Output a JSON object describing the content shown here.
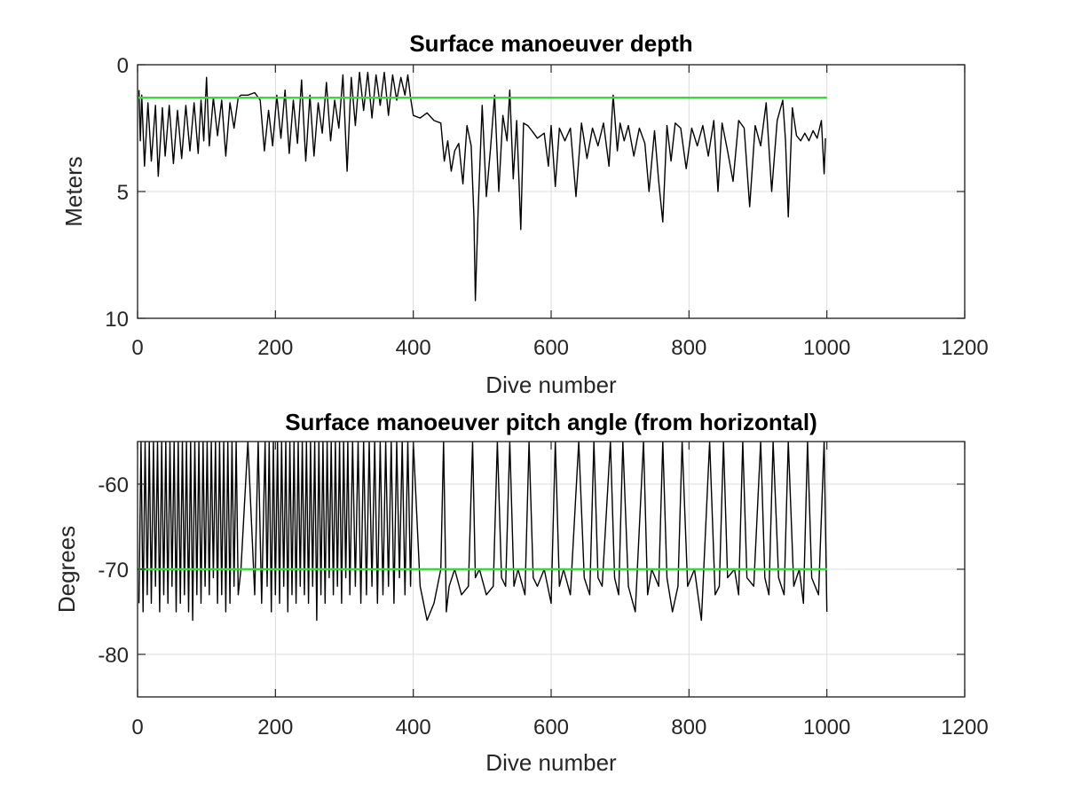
{
  "chart_data": [
    {
      "type": "line",
      "title": "Surface manoeuver depth",
      "xlabel": "Dive number",
      "ylabel": "Meters",
      "xlim": [
        0,
        1200
      ],
      "ylim": [
        0,
        10
      ],
      "y_reversed": true,
      "xticks": [
        0,
        200,
        400,
        600,
        800,
        1000,
        1200
      ],
      "yticks": [
        0,
        5,
        10
      ],
      "grid": true,
      "series": [
        {
          "color": "#000000",
          "x": [
            2,
            4,
            6,
            10,
            15,
            20,
            26,
            30,
            36,
            40,
            46,
            52,
            58,
            64,
            70,
            76,
            82,
            88,
            92,
            96,
            100,
            104,
            110,
            116,
            122,
            128,
            134,
            140,
            146,
            150,
            160,
            170,
            178,
            184,
            190,
            196,
            202,
            208,
            214,
            220,
            226,
            232,
            238,
            244,
            250,
            256,
            262,
            268,
            274,
            280,
            286,
            292,
            298,
            304,
            310,
            316,
            322,
            328,
            334,
            340,
            346,
            352,
            358,
            364,
            370,
            376,
            382,
            388,
            392,
            396,
            400,
            410,
            420,
            430,
            440,
            445,
            450,
            455,
            460,
            466,
            472,
            478,
            484,
            488,
            490,
            494,
            500,
            506,
            512,
            518,
            524,
            530,
            536,
            540,
            545,
            550,
            556,
            560,
            566,
            572,
            580,
            590,
            596,
            600,
            606,
            612,
            620,
            628,
            636,
            644,
            652,
            660,
            668,
            676,
            684,
            690,
            696,
            700,
            706,
            712,
            720,
            728,
            736,
            742,
            750,
            756,
            762,
            768,
            774,
            780,
            788,
            796,
            804,
            812,
            820,
            828,
            836,
            842,
            848,
            856,
            864,
            872,
            880,
            888,
            896,
            904,
            912,
            920,
            928,
            936,
            940,
            944,
            950,
            956,
            962,
            968,
            974,
            980,
            986,
            992,
            996,
            998
          ],
          "y": [
            1.0,
            3.0,
            1.2,
            4.0,
            1.5,
            3.8,
            1.6,
            4.4,
            1.7,
            3.6,
            1.6,
            3.9,
            1.8,
            3.7,
            1.6,
            3.4,
            1.5,
            3.5,
            1.4,
            3.0,
            0.5,
            3.2,
            1.3,
            2.8,
            1.4,
            3.6,
            1.5,
            2.5,
            1.3,
            1.2,
            1.2,
            1.1,
            1.4,
            3.4,
            1.8,
            3.2,
            1.2,
            2.9,
            1.0,
            3.5,
            1.4,
            3.1,
            0.6,
            3.8,
            1.2,
            3.6,
            1.5,
            2.7,
            0.7,
            3.0,
            1.4,
            2.5,
            0.4,
            4.2,
            0.5,
            2.4,
            0.3,
            1.8,
            0.3,
            2.1,
            0.4,
            1.6,
            0.3,
            2.0,
            0.4,
            1.4,
            0.5,
            1.2,
            0.4,
            1.3,
            2.0,
            2.1,
            1.9,
            2.2,
            2.3,
            3.8,
            3.0,
            4.2,
            3.4,
            3.1,
            4.7,
            2.4,
            3.2,
            6.0,
            9.3,
            5.8,
            1.6,
            5.2,
            3.3,
            1.2,
            5.0,
            2.0,
            3.0,
            1.0,
            4.5,
            2.2,
            6.5,
            2.3,
            2.4,
            2.6,
            2.9,
            2.7,
            4.0,
            2.4,
            4.8,
            2.5,
            3.0,
            2.5,
            5.2,
            2.3,
            3.7,
            2.5,
            3.2,
            2.3,
            4.0,
            1.2,
            3.4,
            2.3,
            3.0,
            2.4,
            3.6,
            2.5,
            3.1,
            5.0,
            2.6,
            4.6,
            6.2,
            2.4,
            3.8,
            2.3,
            2.5,
            4.1,
            2.5,
            3.2,
            2.4,
            3.6,
            2.2,
            5.0,
            2.3,
            3.4,
            4.6,
            2.2,
            2.5,
            5.6,
            2.4,
            3.2,
            1.5,
            5.0,
            2.2,
            1.4,
            3.0,
            6.0,
            1.7,
            2.8,
            3.0,
            2.7,
            3.0,
            2.6,
            2.9,
            2.2,
            4.3,
            2.9
          ]
        },
        {
          "color": "#33dd33",
          "x": [
            0,
            1000
          ],
          "y": [
            1.3,
            1.3
          ]
        }
      ]
    },
    {
      "type": "line",
      "title": "Surface manoeuver pitch angle (from horizontal)",
      "xlabel": "Dive number",
      "ylabel": "Degrees",
      "xlim": [
        0,
        1200
      ],
      "ylim": [
        -85,
        -55
      ],
      "xticks": [
        0,
        200,
        400,
        600,
        800,
        1000,
        1200
      ],
      "yticks": [
        -80,
        -70,
        -60
      ],
      "grid": true,
      "series": [
        {
          "color": "#000000",
          "x": [
            2,
            5,
            8,
            11,
            14,
            17,
            20,
            23,
            26,
            29,
            32,
            35,
            38,
            41,
            44,
            47,
            50,
            53,
            56,
            59,
            62,
            65,
            68,
            71,
            74,
            77,
            80,
            83,
            86,
            89,
            92,
            95,
            98,
            101,
            104,
            107,
            110,
            113,
            116,
            119,
            122,
            125,
            128,
            131,
            134,
            137,
            140,
            143,
            146,
            150,
            160,
            170,
            175,
            180,
            185,
            188,
            191,
            194,
            197,
            200,
            203,
            206,
            209,
            212,
            215,
            218,
            221,
            224,
            227,
            230,
            233,
            236,
            239,
            242,
            245,
            248,
            251,
            254,
            257,
            260,
            263,
            266,
            269,
            272,
            275,
            278,
            281,
            284,
            287,
            290,
            293,
            296,
            299,
            302,
            305,
            308,
            312,
            316,
            320,
            324,
            328,
            332,
            336,
            340,
            344,
            348,
            352,
            356,
            360,
            364,
            368,
            372,
            376,
            380,
            384,
            388,
            392,
            396,
            400,
            410,
            420,
            430,
            440,
            444,
            448,
            452,
            460,
            470,
            480,
            486,
            490,
            496,
            506,
            516,
            522,
            528,
            534,
            540,
            546,
            552,
            562,
            568,
            574,
            580,
            590,
            600,
            606,
            612,
            618,
            628,
            640,
            648,
            656,
            662,
            668,
            674,
            686,
            692,
            698,
            704,
            712,
            722,
            734,
            740,
            746,
            756,
            762,
            768,
            776,
            784,
            790,
            798,
            808,
            818,
            830,
            838,
            844,
            850,
            856,
            866,
            872,
            878,
            884,
            894,
            904,
            910,
            916,
            922,
            930,
            938,
            944,
            952,
            960,
            966,
            972,
            978,
            988,
            996,
            1000
          ],
          "y": [
            -74,
            -55,
            -75,
            -55,
            -73,
            -55,
            -74,
            -55,
            -72,
            -55,
            -75,
            -55,
            -73,
            -55,
            -74,
            -55,
            -72,
            -55,
            -75,
            -55,
            -74,
            -55,
            -73,
            -55,
            -75,
            -55,
            -76,
            -55,
            -73,
            -55,
            -74,
            -55,
            -72,
            -55,
            -73,
            -55,
            -71,
            -55,
            -74,
            -55,
            -73,
            -55,
            -75,
            -55,
            -74,
            -55,
            -72,
            -55,
            -73,
            -70,
            -55,
            -73,
            -55,
            -74,
            -55,
            -72,
            -55,
            -75,
            -55,
            -73,
            -55,
            -74,
            -55,
            -72,
            -55,
            -75,
            -55,
            -73,
            -55,
            -74,
            -55,
            -72,
            -55,
            -73,
            -55,
            -74,
            -55,
            -72,
            -55,
            -76,
            -55,
            -73,
            -55,
            -74,
            -55,
            -71,
            -55,
            -73,
            -55,
            -72,
            -55,
            -74,
            -55,
            -71,
            -55,
            -73,
            -55,
            -72,
            -55,
            -74,
            -55,
            -73,
            -55,
            -72,
            -55,
            -74,
            -55,
            -73,
            -55,
            -72,
            -55,
            -74,
            -55,
            -71,
            -55,
            -73,
            -55,
            -72,
            -55,
            -72,
            -76,
            -74,
            -70,
            -55,
            -75,
            -72,
            -70,
            -73,
            -72,
            -55,
            -71,
            -70,
            -73,
            -72,
            -55,
            -71,
            -72,
            -55,
            -72,
            -70,
            -73,
            -55,
            -71,
            -72,
            -70,
            -74,
            -55,
            -72,
            -70,
            -73,
            -55,
            -71,
            -73,
            -55,
            -71,
            -72,
            -55,
            -71,
            -73,
            -55,
            -72,
            -75,
            -55,
            -73,
            -70,
            -72,
            -55,
            -71,
            -75,
            -72,
            -55,
            -72,
            -70,
            -76,
            -55,
            -73,
            -72,
            -55,
            -71,
            -70,
            -73,
            -55,
            -71,
            -72,
            -55,
            -71,
            -73,
            -55,
            -71,
            -73,
            -55,
            -72,
            -70,
            -74,
            -55,
            -71,
            -73,
            -55,
            -75
          ]
        },
        {
          "color": "#33dd33",
          "x": [
            0,
            1000
          ],
          "y": [
            -70,
            -70
          ]
        }
      ]
    }
  ]
}
